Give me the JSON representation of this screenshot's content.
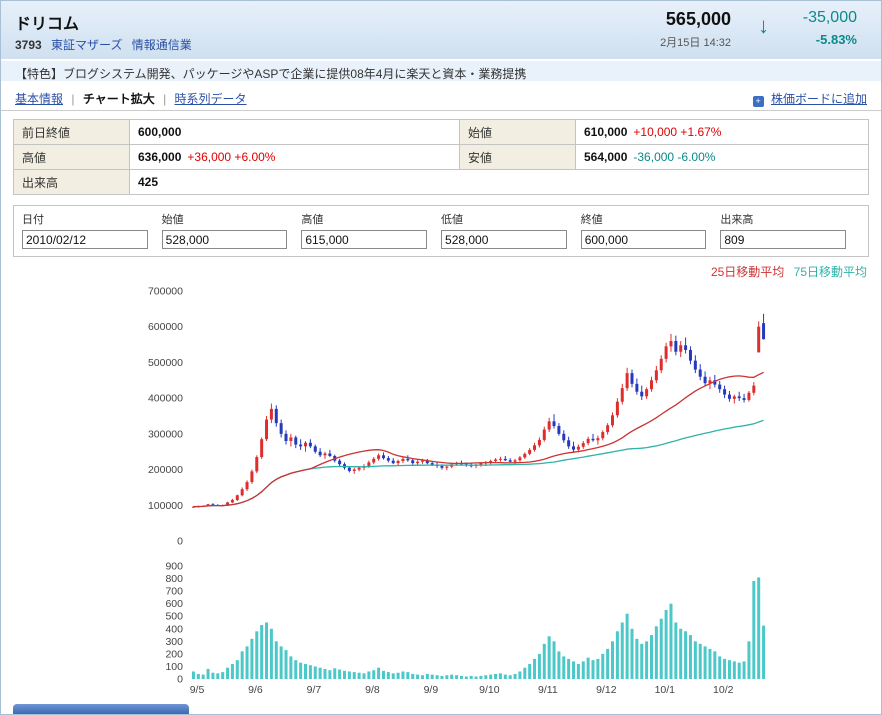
{
  "header": {
    "name": "ドリコム",
    "code": "3793",
    "market": "東証マザーズ",
    "industry": "情報通信業",
    "price": "565,000",
    "datetime": "2月15日 14:32",
    "change": "-35,000",
    "change_pct": "-5.83%"
  },
  "feature": {
    "text": "【特色】ブログシステム開発、パッケージやASPで企業に提供08年4月に楽天と資本・業務提携"
  },
  "nav": {
    "sep": "|",
    "items": [
      {
        "label": "基本情報"
      },
      {
        "label": "チャート拡大"
      },
      {
        "label": "時系列データ"
      }
    ],
    "add_board": "株価ボードに追加",
    "add_board_icon": "+"
  },
  "summary": {
    "r0": {
      "l1": "前日終値",
      "v1": "600,000",
      "l2": "始値",
      "v2": "610,000",
      "c2": "+10,000 +1.67%"
    },
    "r1": {
      "l1": "高値",
      "v1": "636,000",
      "c1": "+36,000 +6.00%",
      "l2": "安値",
      "v2": "564,000",
      "c2": "-36,000 -6.00%"
    },
    "r2": {
      "l1": "出来高",
      "v1": "425"
    }
  },
  "series_form": {
    "cols": [
      {
        "label": "日付",
        "value": "2010/02/12"
      },
      {
        "label": "始値",
        "value": "528,000"
      },
      {
        "label": "高値",
        "value": "615,000"
      },
      {
        "label": "低値",
        "value": "528,000"
      },
      {
        "label": "終値",
        "value": "600,000"
      },
      {
        "label": "出来高",
        "value": "809"
      }
    ]
  },
  "legend": {
    "ma25": "25日移動平均",
    "ma75": "75日移動平均"
  },
  "colors": {
    "up_red": "#e00000",
    "down_teal": "#0a8a8a"
  },
  "chart_data": {
    "type": "candlestick+volume",
    "title": "",
    "x_labels": [
      "9/5",
      "9/6",
      "9/7",
      "9/8",
      "9/9",
      "9/10",
      "9/11",
      "9/12",
      "10/1",
      "10/2"
    ],
    "x_label_positions": [
      0,
      12,
      24,
      36,
      48,
      60,
      72,
      84,
      96,
      108
    ],
    "price_axis": {
      "min": 0,
      "max": 700000,
      "ticks": [
        700000,
        600000,
        500000,
        400000,
        300000,
        200000,
        100000,
        0
      ]
    },
    "volume_axis": {
      "min": 0,
      "max": 900,
      "ticks": [
        900,
        800,
        700,
        600,
        500,
        400,
        300,
        200,
        100,
        0
      ]
    },
    "ma_windows": [
      25,
      75
    ],
    "colors": {
      "up": "#dd2e2e",
      "down": "#2439c0",
      "ma25": "#cc3333",
      "ma75": "#2fb3a8",
      "volume": "#4cc8c8"
    },
    "candles_format": [
      "open",
      "high",
      "low",
      "close",
      "volume"
    ],
    "candles": [
      [
        95000,
        98000,
        93000,
        96000,
        60
      ],
      [
        96000,
        99000,
        94000,
        97000,
        40
      ],
      [
        97000,
        100000,
        95000,
        98000,
        35
      ],
      [
        98000,
        104000,
        97000,
        103000,
        80
      ],
      [
        103000,
        106000,
        100000,
        101000,
        50
      ],
      [
        101000,
        103000,
        98000,
        99000,
        45
      ],
      [
        99000,
        102000,
        97000,
        100000,
        55
      ],
      [
        100000,
        110000,
        99000,
        108000,
        90
      ],
      [
        108000,
        118000,
        106000,
        115000,
        120
      ],
      [
        115000,
        130000,
        112000,
        128000,
        150
      ],
      [
        128000,
        150000,
        125000,
        145000,
        220
      ],
      [
        145000,
        170000,
        140000,
        165000,
        260
      ],
      [
        165000,
        200000,
        160000,
        195000,
        320
      ],
      [
        195000,
        240000,
        190000,
        235000,
        380
      ],
      [
        235000,
        290000,
        230000,
        285000,
        430
      ],
      [
        285000,
        350000,
        280000,
        340000,
        450
      ],
      [
        340000,
        385000,
        330000,
        370000,
        400
      ],
      [
        370000,
        380000,
        320000,
        330000,
        300
      ],
      [
        330000,
        340000,
        290000,
        300000,
        260
      ],
      [
        300000,
        310000,
        270000,
        280000,
        230
      ],
      [
        280000,
        300000,
        265000,
        290000,
        180
      ],
      [
        290000,
        295000,
        260000,
        270000,
        150
      ],
      [
        270000,
        285000,
        255000,
        265000,
        130
      ],
      [
        265000,
        280000,
        250000,
        275000,
        120
      ],
      [
        275000,
        285000,
        260000,
        265000,
        110
      ],
      [
        265000,
        270000,
        245000,
        250000,
        100
      ],
      [
        250000,
        260000,
        235000,
        240000,
        90
      ],
      [
        240000,
        250000,
        230000,
        245000,
        80
      ],
      [
        245000,
        255000,
        235000,
        238000,
        70
      ],
      [
        238000,
        242000,
        220000,
        225000,
        85
      ],
      [
        225000,
        230000,
        210000,
        215000,
        75
      ],
      [
        215000,
        220000,
        200000,
        205000,
        65
      ],
      [
        205000,
        210000,
        192000,
        196000,
        60
      ],
      [
        196000,
        205000,
        188000,
        200000,
        55
      ],
      [
        200000,
        210000,
        195000,
        205000,
        50
      ],
      [
        205000,
        215000,
        198000,
        210000,
        45
      ],
      [
        210000,
        225000,
        205000,
        220000,
        60
      ],
      [
        220000,
        235000,
        215000,
        230000,
        70
      ],
      [
        230000,
        245000,
        225000,
        240000,
        90
      ],
      [
        240000,
        248000,
        228000,
        232000,
        65
      ],
      [
        232000,
        238000,
        220000,
        225000,
        55
      ],
      [
        225000,
        232000,
        215000,
        218000,
        45
      ],
      [
        218000,
        228000,
        212000,
        224000,
        50
      ],
      [
        224000,
        234000,
        218000,
        230000,
        60
      ],
      [
        230000,
        240000,
        222000,
        226000,
        55
      ],
      [
        226000,
        232000,
        214000,
        218000,
        40
      ],
      [
        218000,
        226000,
        210000,
        222000,
        35
      ],
      [
        222000,
        230000,
        216000,
        225000,
        30
      ],
      [
        225000,
        230000,
        215000,
        218000,
        40
      ],
      [
        218000,
        224000,
        210000,
        214000,
        35
      ],
      [
        214000,
        220000,
        205000,
        210000,
        30
      ],
      [
        210000,
        215000,
        200000,
        205000,
        25
      ],
      [
        205000,
        212000,
        198000,
        208000,
        30
      ],
      [
        208000,
        218000,
        204000,
        215000,
        35
      ],
      [
        215000,
        222000,
        210000,
        218000,
        30
      ],
      [
        218000,
        225000,
        212000,
        215000,
        25
      ],
      [
        215000,
        220000,
        208000,
        212000,
        20
      ],
      [
        212000,
        218000,
        206000,
        210000,
        25
      ],
      [
        210000,
        216000,
        204000,
        214000,
        20
      ],
      [
        214000,
        220000,
        208000,
        217000,
        25
      ],
      [
        217000,
        224000,
        210000,
        220000,
        30
      ],
      [
        220000,
        228000,
        214000,
        224000,
        35
      ],
      [
        224000,
        232000,
        218000,
        228000,
        40
      ],
      [
        228000,
        236000,
        222000,
        230000,
        45
      ],
      [
        230000,
        238000,
        224000,
        226000,
        35
      ],
      [
        226000,
        232000,
        218000,
        222000,
        30
      ],
      [
        222000,
        230000,
        216000,
        226000,
        40
      ],
      [
        226000,
        238000,
        222000,
        234000,
        60
      ],
      [
        234000,
        248000,
        230000,
        244000,
        90
      ],
      [
        244000,
        260000,
        240000,
        255000,
        120
      ],
      [
        255000,
        275000,
        250000,
        268000,
        160
      ],
      [
        268000,
        290000,
        262000,
        283000,
        200
      ],
      [
        283000,
        320000,
        278000,
        312000,
        280
      ],
      [
        312000,
        345000,
        305000,
        335000,
        340
      ],
      [
        335000,
        355000,
        315000,
        322000,
        300
      ],
      [
        322000,
        330000,
        295000,
        300000,
        220
      ],
      [
        300000,
        310000,
        275000,
        282000,
        180
      ],
      [
        282000,
        292000,
        258000,
        265000,
        160
      ],
      [
        265000,
        278000,
        250000,
        256000,
        140
      ],
      [
        256000,
        270000,
        248000,
        264000,
        120
      ],
      [
        264000,
        280000,
        258000,
        274000,
        140
      ],
      [
        274000,
        292000,
        268000,
        286000,
        170
      ],
      [
        286000,
        300000,
        278000,
        282000,
        150
      ],
      [
        282000,
        295000,
        270000,
        288000,
        160
      ],
      [
        288000,
        310000,
        282000,
        305000,
        200
      ],
      [
        305000,
        330000,
        298000,
        324000,
        240
      ],
      [
        324000,
        360000,
        318000,
        352000,
        300
      ],
      [
        352000,
        400000,
        345000,
        390000,
        380
      ],
      [
        390000,
        440000,
        382000,
        428000,
        450
      ],
      [
        428000,
        485000,
        420000,
        470000,
        520
      ],
      [
        470000,
        480000,
        430000,
        440000,
        400
      ],
      [
        440000,
        455000,
        410000,
        418000,
        320
      ],
      [
        418000,
        435000,
        395000,
        405000,
        280
      ],
      [
        405000,
        430000,
        398000,
        425000,
        300
      ],
      [
        425000,
        460000,
        418000,
        450000,
        350
      ],
      [
        450000,
        490000,
        442000,
        478000,
        420
      ],
      [
        478000,
        520000,
        470000,
        510000,
        480
      ],
      [
        510000,
        555000,
        500000,
        545000,
        550
      ],
      [
        545000,
        580000,
        530000,
        560000,
        600
      ],
      [
        560000,
        575000,
        520000,
        530000,
        450
      ],
      [
        530000,
        560000,
        515000,
        548000,
        400
      ],
      [
        548000,
        570000,
        525000,
        535000,
        380
      ],
      [
        535000,
        545000,
        495000,
        505000,
        350
      ],
      [
        505000,
        520000,
        470000,
        480000,
        300
      ],
      [
        480000,
        495000,
        450000,
        460000,
        280
      ],
      [
        460000,
        475000,
        435000,
        442000,
        260
      ],
      [
        442000,
        460000,
        425000,
        450000,
        240
      ],
      [
        450000,
        465000,
        430000,
        438000,
        220
      ],
      [
        438000,
        448000,
        415000,
        425000,
        180
      ],
      [
        425000,
        435000,
        400000,
        410000,
        160
      ],
      [
        410000,
        420000,
        390000,
        398000,
        150
      ],
      [
        398000,
        410000,
        385000,
        405000,
        140
      ],
      [
        405000,
        418000,
        392000,
        400000,
        130
      ],
      [
        400000,
        412000,
        388000,
        395000,
        140
      ],
      [
        395000,
        420000,
        390000,
        415000,
        300
      ],
      [
        415000,
        445000,
        408000,
        435000,
        780
      ],
      [
        528000,
        615000,
        528000,
        600000,
        809
      ],
      [
        610000,
        636000,
        564000,
        565000,
        425
      ]
    ]
  }
}
